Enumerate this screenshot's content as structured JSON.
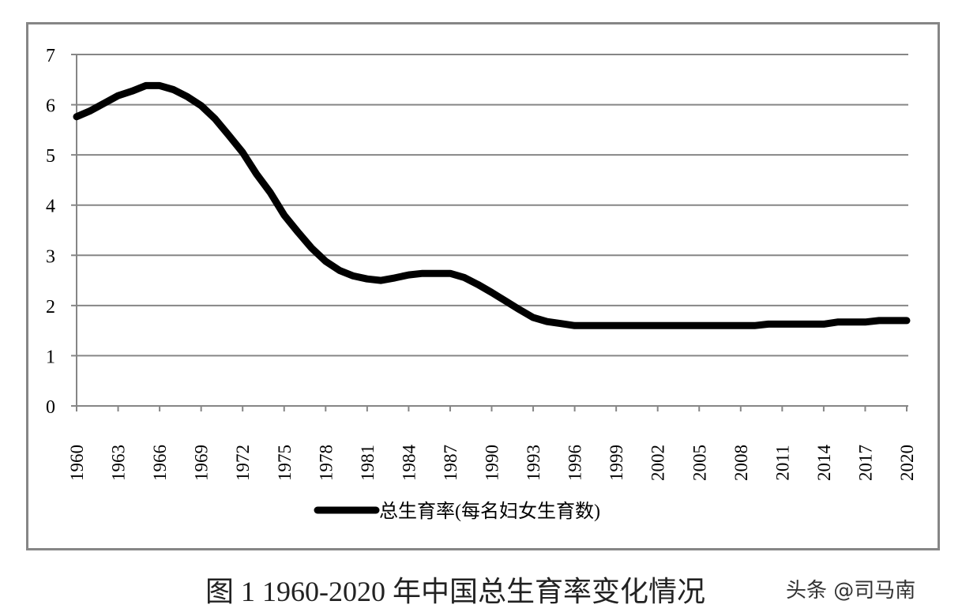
{
  "caption": "图 1 1960-2020 年中国总生育率变化情况",
  "watermark": "头条 @司马南",
  "colors": {
    "line": "#000000",
    "grid": "#868686",
    "frame": "#868686",
    "background": "#ffffff"
  },
  "chart_data": {
    "type": "line",
    "title": "",
    "xlabel": "",
    "ylabel": "",
    "ylim": [
      0,
      7
    ],
    "yticks": [
      0,
      1,
      2,
      3,
      4,
      5,
      6,
      7
    ],
    "xticks": [
      "1960",
      "1963",
      "1966",
      "1969",
      "1972",
      "1975",
      "1978",
      "1981",
      "1984",
      "1987",
      "1990",
      "1993",
      "1996",
      "1999",
      "2002",
      "2005",
      "2008",
      "2011",
      "2014",
      "2017",
      "2020"
    ],
    "grid": true,
    "legend_position": "bottom",
    "x": [
      1960,
      1961,
      1962,
      1963,
      1964,
      1965,
      1966,
      1967,
      1968,
      1969,
      1970,
      1971,
      1972,
      1973,
      1974,
      1975,
      1976,
      1977,
      1978,
      1979,
      1980,
      1981,
      1982,
      1983,
      1984,
      1985,
      1986,
      1987,
      1988,
      1989,
      1990,
      1991,
      1992,
      1993,
      1994,
      1995,
      1996,
      1997,
      1998,
      1999,
      2000,
      2001,
      2002,
      2003,
      2004,
      2005,
      2006,
      2007,
      2008,
      2009,
      2010,
      2011,
      2012,
      2013,
      2014,
      2015,
      2016,
      2017,
      2018,
      2019,
      2020
    ],
    "series": [
      {
        "name": "总生育率(每名妇女生育数)",
        "values": [
          5.76,
          5.88,
          6.03,
          6.18,
          6.27,
          6.38,
          6.38,
          6.3,
          6.16,
          5.98,
          5.72,
          5.39,
          5.05,
          4.62,
          4.25,
          3.8,
          3.46,
          3.14,
          2.88,
          2.7,
          2.59,
          2.53,
          2.5,
          2.55,
          2.61,
          2.64,
          2.64,
          2.64,
          2.56,
          2.42,
          2.26,
          2.09,
          1.92,
          1.76,
          1.68,
          1.64,
          1.6,
          1.6,
          1.6,
          1.6,
          1.6,
          1.6,
          1.6,
          1.6,
          1.6,
          1.6,
          1.6,
          1.6,
          1.6,
          1.6,
          1.63,
          1.63,
          1.63,
          1.63,
          1.63,
          1.67,
          1.67,
          1.67,
          1.7,
          1.7,
          1.7
        ]
      }
    ]
  }
}
